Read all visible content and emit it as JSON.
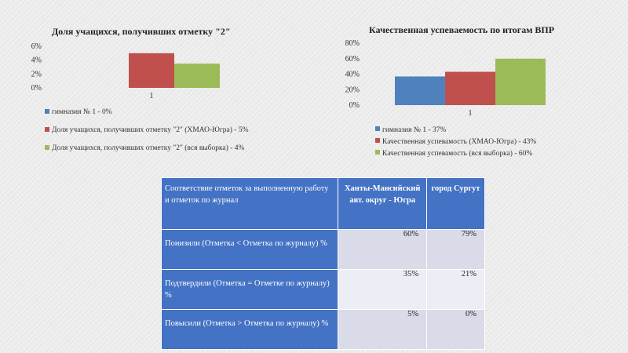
{
  "chart_data": [
    {
      "type": "bar",
      "title": "Доля учащихся, получивших отметку \"2\"",
      "categories": [
        "1"
      ],
      "ylim": [
        0,
        6
      ],
      "yticks": [
        "0%",
        "2%",
        "4%",
        "6%"
      ],
      "series": [
        {
          "name": "гимназия № 1 - 0%",
          "values": [
            0
          ],
          "color": "#4f81bd"
        },
        {
          "name": "Доля учащихся, получивших отметку \"2\" (ХМАО-Югра) - 5%",
          "values": [
            5
          ],
          "color": "#c0504d"
        },
        {
          "name": "Доля учащихся, получивших отметку \"2\" (вся выборка) - 4%",
          "values": [
            3.5
          ],
          "color": "#9bbb59"
        }
      ],
      "legend_position": "bottom"
    },
    {
      "type": "bar",
      "title": "Качественная успеваемость по итогам ВПР",
      "categories": [
        "1"
      ],
      "ylim": [
        0,
        80
      ],
      "yticks": [
        "0%",
        "20%",
        "40%",
        "60%",
        "80%"
      ],
      "series": [
        {
          "name": "гимназия № 1 - 37%",
          "values": [
            37
          ],
          "color": "#4f81bd"
        },
        {
          "name": "Качественная успевамость (ХМАО-Югра) - 43%",
          "values": [
            43
          ],
          "color": "#c0504d"
        },
        {
          "name": "Качественная успевамость (вся выборка) - 60%",
          "values": [
            60
          ],
          "color": "#9bbb59"
        }
      ],
      "legend_position": "bottom"
    },
    {
      "type": "table",
      "header": [
        "Соответствие отметок за выполненную работу и отметок по журнал",
        "Ханты-Мансийский авт. округ - Югра",
        "город Сургут"
      ],
      "rows": [
        [
          "Понизили (Отметка < Отметка по журналу) %",
          "60%",
          "79%"
        ],
        [
          "Подтвердили (Отметка = Отметке по журналу) %",
          "35%",
          "21%"
        ],
        [
          "Повысили (Отметка > Отметка по журналу) %",
          "5%",
          "0%"
        ]
      ]
    }
  ]
}
